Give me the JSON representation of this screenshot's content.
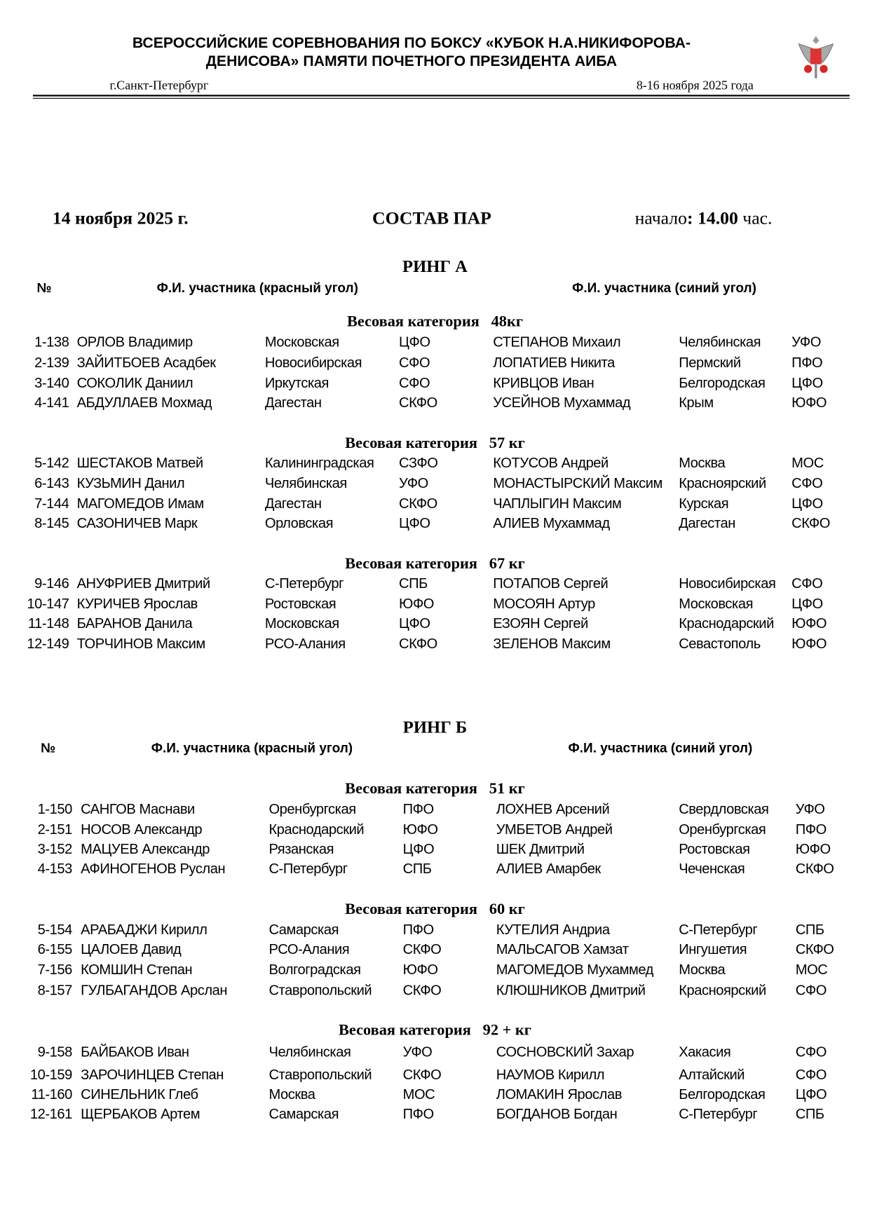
{
  "header": {
    "title_line1": "ВСЕРОССИЙСКИЕ СОРЕВНОВАНИЯ ПО БОКСУ «КУБОК Н.А.НИКИФОРОВА-",
    "title_line2": "ДЕНИСОВА» ПАМЯТИ ПОЧЕТНОГО ПРЕЗИДЕНТА АИБА",
    "city": "г.Санкт-Петербург",
    "dates": "8-16 ноября 2025 года",
    "logo": "russian-boxing-federation-eagle-emblem"
  },
  "info": {
    "date": "14 ноября 2025 г.",
    "title": "СОСТАВ ПАР",
    "start_label": "начало",
    "start_colon": ":",
    "start_time": "14.00",
    "start_unit": "час."
  },
  "rings": [
    {
      "name": "РИНГ А",
      "col_num": "№",
      "col_red": "Ф.И. участника (красный угол)",
      "col_blue": "Ф.И. участника (синий угол)",
      "categories": [
        {
          "label": "Весовая категория",
          "weight": "48кг",
          "rows": [
            [
              "1-138",
              "ОРЛОВ Владимир",
              "Московская",
              "ЦФО",
              "СТЕПАНОВ Михаил",
              "Челябинская",
              "УФО"
            ],
            [
              "2-139",
              "ЗАЙИТБОЕВ Асадбек",
              "Новосибирская",
              "СФО",
              "ЛОПАТИЕВ Никита",
              "Пермский",
              "ПФО"
            ],
            [
              "3-140",
              "СОКОЛИК Даниил",
              "Иркутская",
              "СФО",
              "КРИВЦОВ Иван",
              "Белгородская",
              "ЦФО"
            ],
            [
              "4-141",
              "АБДУЛЛАЕВ Мохмад",
              "Дагестан",
              "СКФО",
              "УСЕЙНОВ Мухаммад",
              "Крым",
              "ЮФО"
            ]
          ]
        },
        {
          "label": "Весовая категория",
          "weight": "57 кг",
          "rows": [
            [
              "5-142",
              "ШЕСТАКОВ Матвей",
              "Калининградская",
              "СЗФО",
              "КОТУСОВ Андрей",
              "Москва",
              "МОС"
            ],
            [
              "6-143",
              "КУЗЬМИН Данил",
              "Челябинская",
              "УФО",
              "МОНАСТЫРСКИЙ Максим",
              "Красноярский",
              "СФО"
            ],
            [
              "7-144",
              "МАГОМЕДОВ Имам",
              "Дагестан",
              "СКФО",
              "ЧАПЛЫГИН Максим",
              "Курская",
              "ЦФО"
            ],
            [
              "8-145",
              "САЗОНИЧЕВ Марк",
              "Орловская",
              "ЦФО",
              "АЛИЕВ Мухаммад",
              "Дагестан",
              "СКФО"
            ]
          ]
        },
        {
          "label": "Весовая категория",
          "weight": "67 кг",
          "rows": [
            [
              "9-146",
              "АНУФРИЕВ Дмитрий",
              "С-Петербург",
              "СПБ",
              "ПОТАПОВ Сергей",
              "Новосибирская",
              "СФО"
            ],
            [
              "10-147",
              "КУРИЧЕВ Ярослав",
              "Ростовская",
              "ЮФО",
              "МОСОЯН Артур",
              "Московская",
              "ЦФО"
            ],
            [
              "11-148",
              "БАРАНОВ Данила",
              "Московская",
              "ЦФО",
              "ЕЗОЯН Сергей",
              "Краснодарский",
              "ЮФО"
            ],
            [
              "12-149",
              "ТОРЧИНОВ Максим",
              "РСО-Алания",
              "СКФО",
              "ЗЕЛЕНОВ Максим",
              "Севастополь",
              "ЮФО"
            ]
          ]
        }
      ]
    },
    {
      "name": "РИНГ Б",
      "col_num": "№",
      "col_red": "Ф.И. участника (красный угол)",
      "col_blue": "Ф.И. участника (синий угол)",
      "categories": [
        {
          "label": "Весовая категория",
          "weight": "51 кг",
          "rows": [
            [
              "1-150",
              "САНГОВ Маснави",
              "Оренбургская",
              "ПФО",
              "ЛОХНЕВ Арсений",
              "Свердловская",
              "УФО"
            ],
            [
              "2-151",
              "НОСОВ Александр",
              "Краснодарский",
              "ЮФО",
              "УМБЕТОВ Андрей",
              "Оренбургская",
              "ПФО"
            ],
            [
              "3-152",
              "МАЦУЕВ Александр",
              "Рязанская",
              "ЦФО",
              "ШЕК Дмитрий",
              "Ростовская",
              "ЮФО"
            ],
            [
              "4-153",
              "АФИНОГЕНОВ Руслан",
              "С-Петербург",
              "СПБ",
              "АЛИЕВ Амарбек",
              "Чеченская",
              "СКФО"
            ]
          ]
        },
        {
          "label": "Весовая категория",
          "weight": "60 кг",
          "rows": [
            [
              "5-154",
              "АРАБАДЖИ Кирилл",
              "Самарская",
              "ПФО",
              "КУТЕЛИЯ Андриа",
              "С-Петербург",
              "СПБ"
            ],
            [
              "6-155",
              "ЦАЛОЕВ Давид",
              "РСО-Алания",
              "СКФО",
              "МАЛЬСАГОВ Хамзат",
              "Ингушетия",
              "СКФО"
            ],
            [
              "7-156",
              "КОМШИН Степан",
              "Волгоградская",
              "ЮФО",
              "МАГОМЕДОВ Мухаммед",
              "Москва",
              "МОС"
            ],
            [
              "8-157",
              "ГУЛБАГАНДОВ Арслан",
              "Ставропольский",
              "СКФО",
              "КЛЮШНИКОВ Дмитрий",
              "Красноярский",
              "СФО"
            ]
          ]
        },
        {
          "label": "Весовая категория",
          "weight": "92 + кг",
          "rows": [
            [
              "9-158",
              "БАЙБАКОВ Иван",
              "Челябинская",
              "УФО",
              "СОСНОВСКИЙ Захар",
              "Хакасия",
              "СФО"
            ],
            [
              "10-159",
              "ЗАРОЧИНЦЕВ Степан",
              "Ставропольский",
              "СКФО",
              "НАУМОВ Кирилл",
              "Алтайский",
              "СФО"
            ],
            [
              "11-160",
              "СИНЕЛЬНИК Глеб",
              "Москва",
              "МОС",
              "ЛОМАКИН Ярослав",
              "Белгородская",
              "ЦФО"
            ],
            [
              "12-161",
              "ЩЕРБАКОВ Артем",
              "Самарская",
              "ПФО",
              "БОГДАНОВ Богдан",
              "С-Петербург",
              "СПБ"
            ]
          ]
        }
      ]
    }
  ]
}
